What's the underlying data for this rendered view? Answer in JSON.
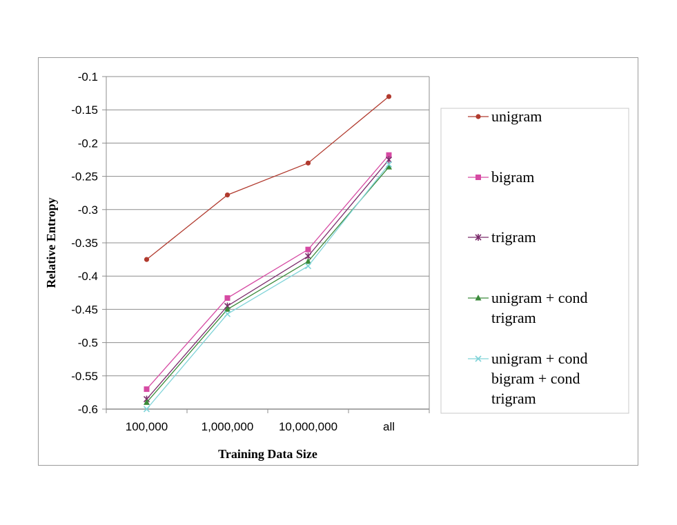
{
  "chart_data": {
    "type": "line",
    "categories": [
      "100,000",
      "1,000,000",
      "10,000,000",
      "all"
    ],
    "xlabel": "Training Data Size",
    "ylabel": "Relative Entropy",
    "ylim": [
      -0.6,
      -0.1
    ],
    "yticks": [
      "-0.1",
      "-0.15",
      "-0.2",
      "-0.25",
      "-0.3",
      "-0.35",
      "-0.4",
      "-0.45",
      "-0.5",
      "-0.55",
      "-0.6"
    ],
    "grid": true,
    "legend_position": "right",
    "series": [
      {
        "name": "unigram",
        "values": [
          -0.375,
          -0.278,
          -0.23,
          -0.13
        ],
        "color": "#b13a2e",
        "marker": "circle"
      },
      {
        "name": "bigram",
        "values": [
          -0.57,
          -0.433,
          -0.36,
          -0.218
        ],
        "color": "#d64aa3",
        "marker": "square"
      },
      {
        "name": "trigram",
        "values": [
          -0.585,
          -0.445,
          -0.37,
          -0.225
        ],
        "color": "#7a2a6a",
        "marker": "star"
      },
      {
        "name": "unigram + cond trigram",
        "values": [
          -0.59,
          -0.45,
          -0.378,
          -0.236
        ],
        "color": "#3a8a3a",
        "marker": "triangle"
      },
      {
        "name": "unigram + cond bigram + cond trigram",
        "values": [
          -0.6,
          -0.457,
          -0.385,
          -0.232
        ],
        "color": "#7fd3d8",
        "marker": "x"
      }
    ]
  },
  "legend": {
    "entries": [
      {
        "lines": [
          "unigram"
        ]
      },
      {
        "lines": [
          "bigram"
        ]
      },
      {
        "lines": [
          "trigram"
        ]
      },
      {
        "lines": [
          "unigram + cond",
          "trigram"
        ]
      },
      {
        "lines": [
          "unigram + cond",
          "bigram + cond",
          "trigram"
        ]
      }
    ]
  }
}
